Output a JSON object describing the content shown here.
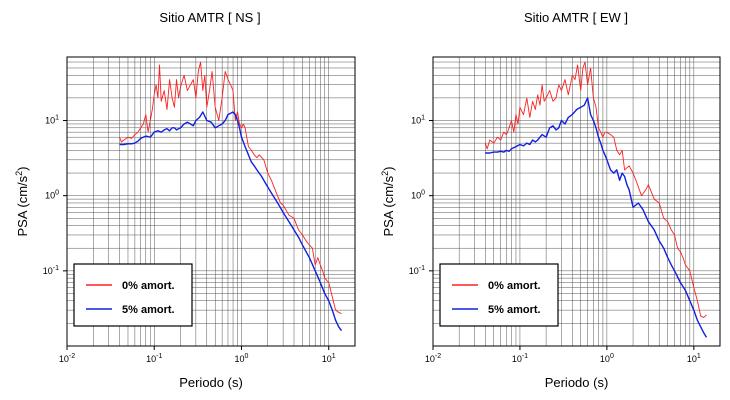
{
  "chart_data": [
    {
      "type": "line",
      "title": "Sitio AMTR [ NS ]",
      "xlabel": "Periodo (s)",
      "ylabel_main": "PSA (cm/s",
      "ylabel_sup": "2",
      "ylabel_end": ")",
      "xscale": "log",
      "yscale": "log",
      "xlim": [
        0.01,
        20
      ],
      "ylim": [
        0.01,
        70
      ],
      "grid": true,
      "legend": "bottom-left",
      "xticks": [
        {
          "base": "10",
          "exp": "-2",
          "v": 0.01
        },
        {
          "base": "10",
          "exp": "-1",
          "v": 0.1
        },
        {
          "base": "10",
          "exp": "0",
          "v": 1
        },
        {
          "base": "10",
          "exp": "1",
          "v": 10
        }
      ],
      "yticks": [
        {
          "base": "10",
          "exp": "-1",
          "v": 0.1
        },
        {
          "base": "10",
          "exp": "0",
          "v": 1
        },
        {
          "base": "10",
          "exp": "1",
          "v": 10
        }
      ],
      "series": [
        {
          "name": "0% amort.",
          "color": "#ff2020",
          "x": [
            0.04,
            0.042,
            0.045,
            0.05,
            0.055,
            0.06,
            0.065,
            0.07,
            0.075,
            0.08,
            0.085,
            0.09,
            0.095,
            0.1,
            0.105,
            0.11,
            0.115,
            0.12,
            0.13,
            0.14,
            0.15,
            0.16,
            0.17,
            0.18,
            0.19,
            0.2,
            0.22,
            0.24,
            0.26,
            0.28,
            0.3,
            0.32,
            0.34,
            0.36,
            0.38,
            0.4,
            0.43,
            0.46,
            0.5,
            0.55,
            0.6,
            0.65,
            0.7,
            0.75,
            0.8,
            0.85,
            0.9,
            0.95,
            1.0,
            1.05,
            1.1,
            1.2,
            1.3,
            1.4,
            1.5,
            1.6,
            1.8,
            2.0,
            2.2,
            2.5,
            2.8,
            3.0,
            3.5,
            4.0,
            4.5,
            5.0,
            5.5,
            6.0,
            6.5,
            7.0,
            7.5,
            8.0,
            8.5,
            9.0,
            10.0,
            11.0,
            12.0,
            13.0,
            14.0
          ],
          "y": [
            6,
            5.2,
            5.5,
            6,
            5.8,
            6.5,
            7,
            8,
            9,
            12,
            7,
            10,
            14,
            22,
            30,
            20,
            55,
            18,
            25,
            14,
            35,
            20,
            15,
            35,
            20,
            28,
            40,
            25,
            30,
            35,
            20,
            45,
            60,
            25,
            40,
            15,
            25,
            45,
            15,
            10,
            20,
            45,
            35,
            30,
            25,
            10,
            13,
            9,
            8,
            9,
            8,
            4.5,
            4,
            3.5,
            3.2,
            3.5,
            3,
            2,
            1.6,
            1.1,
            0.8,
            0.75,
            0.55,
            0.5,
            0.35,
            0.3,
            0.25,
            0.22,
            0.2,
            0.12,
            0.15,
            0.12,
            0.1,
            0.08,
            0.07,
            0.045,
            0.03,
            0.028,
            0.027
          ]
        },
        {
          "name": "5% amort.",
          "color": "#1020e0",
          "x": [
            0.04,
            0.045,
            0.05,
            0.055,
            0.06,
            0.065,
            0.07,
            0.08,
            0.09,
            0.1,
            0.11,
            0.12,
            0.13,
            0.14,
            0.15,
            0.16,
            0.17,
            0.18,
            0.2,
            0.22,
            0.24,
            0.26,
            0.28,
            0.3,
            0.33,
            0.36,
            0.4,
            0.45,
            0.5,
            0.55,
            0.6,
            0.65,
            0.7,
            0.75,
            0.8,
            0.85,
            0.9,
            0.95,
            1.0,
            1.1,
            1.2,
            1.3,
            1.4,
            1.5,
            1.7,
            2.0,
            2.3,
            2.6,
            3.0,
            3.5,
            4.0,
            4.5,
            5.0,
            5.5,
            6.0,
            7.0,
            8.0,
            9.0,
            10.0,
            11.0,
            12.0,
            13.0,
            14.0
          ],
          "y": [
            4.8,
            4.8,
            4.9,
            4.9,
            5,
            5.3,
            5.8,
            6.2,
            6,
            7,
            7.3,
            7,
            7.5,
            7.8,
            7.3,
            8,
            8,
            7.5,
            8,
            9,
            9.5,
            9,
            8.5,
            10,
            11,
            13,
            10,
            9.5,
            8,
            8.5,
            9,
            10,
            12,
            12.5,
            13,
            12,
            10,
            8,
            6,
            4.5,
            3.5,
            2.8,
            2.5,
            2.2,
            1.8,
            1.3,
            1,
            0.8,
            0.6,
            0.45,
            0.35,
            0.28,
            0.22,
            0.18,
            0.15,
            0.1,
            0.07,
            0.05,
            0.04,
            0.03,
            0.022,
            0.018,
            0.016
          ]
        }
      ]
    },
    {
      "type": "line",
      "title": "Sitio AMTR [ EW ]",
      "xlabel": "Periodo (s)",
      "ylabel_main": "PSA (cm/s",
      "ylabel_sup": "2",
      "ylabel_end": ")",
      "xscale": "log",
      "yscale": "log",
      "xlim": [
        0.01,
        20
      ],
      "ylim": [
        0.01,
        70
      ],
      "grid": true,
      "legend": "bottom-left",
      "xticks": [
        {
          "base": "10",
          "exp": "-2",
          "v": 0.01
        },
        {
          "base": "10",
          "exp": "-1",
          "v": 0.1
        },
        {
          "base": "10",
          "exp": "0",
          "v": 1
        },
        {
          "base": "10",
          "exp": "1",
          "v": 10
        }
      ],
      "yticks": [
        {
          "base": "10",
          "exp": "-1",
          "v": 0.1
        },
        {
          "base": "10",
          "exp": "0",
          "v": 1
        },
        {
          "base": "10",
          "exp": "1",
          "v": 10
        }
      ],
      "series": [
        {
          "name": "0% amort.",
          "color": "#ff2020",
          "x": [
            0.04,
            0.042,
            0.045,
            0.05,
            0.055,
            0.06,
            0.065,
            0.07,
            0.075,
            0.08,
            0.085,
            0.09,
            0.095,
            0.1,
            0.11,
            0.12,
            0.13,
            0.14,
            0.15,
            0.16,
            0.17,
            0.18,
            0.19,
            0.2,
            0.22,
            0.24,
            0.26,
            0.28,
            0.3,
            0.33,
            0.36,
            0.4,
            0.43,
            0.46,
            0.5,
            0.53,
            0.56,
            0.6,
            0.65,
            0.7,
            0.75,
            0.8,
            0.85,
            0.9,
            0.95,
            1.0,
            1.1,
            1.2,
            1.3,
            1.4,
            1.5,
            1.6,
            1.8,
            2.0,
            2.2,
            2.5,
            2.8,
            3.0,
            3.5,
            4.0,
            4.5,
            5.0,
            5.5,
            6.0,
            6.5,
            7.0,
            7.5,
            8.0,
            9.0,
            10.0,
            11.0,
            12.0,
            13.0,
            14.0
          ],
          "y": [
            5,
            4.2,
            5.5,
            5,
            6,
            5.5,
            7,
            6.5,
            8,
            10,
            7,
            12,
            9,
            15,
            12,
            20,
            11,
            18,
            14,
            22,
            16,
            30,
            18,
            20,
            25,
            18,
            20,
            30,
            25,
            35,
            22,
            40,
            35,
            55,
            25,
            50,
            60,
            30,
            50,
            20,
            15,
            8,
            7,
            6,
            7,
            7,
            6.5,
            6,
            4,
            3.5,
            4,
            2.2,
            2.5,
            2,
            1.5,
            1,
            1.2,
            1.4,
            0.9,
            0.8,
            0.5,
            0.45,
            0.35,
            0.3,
            0.2,
            0.18,
            0.15,
            0.12,
            0.1,
            0.06,
            0.04,
            0.025,
            0.024,
            0.026
          ]
        },
        {
          "name": "5% amort.",
          "color": "#1020e0",
          "x": [
            0.04,
            0.045,
            0.05,
            0.055,
            0.06,
            0.065,
            0.07,
            0.075,
            0.08,
            0.09,
            0.1,
            0.11,
            0.12,
            0.13,
            0.14,
            0.15,
            0.16,
            0.18,
            0.2,
            0.22,
            0.24,
            0.26,
            0.28,
            0.3,
            0.33,
            0.36,
            0.4,
            0.45,
            0.5,
            0.55,
            0.6,
            0.65,
            0.7,
            0.75,
            0.8,
            0.85,
            0.9,
            0.95,
            1.0,
            1.1,
            1.2,
            1.3,
            1.4,
            1.5,
            1.6,
            1.7,
            1.8,
            2.0,
            2.3,
            2.6,
            3.0,
            3.5,
            4.0,
            4.5,
            5.0,
            5.5,
            6.0,
            7.0,
            8.0,
            9.0,
            10.0,
            11.0,
            12.0,
            13.0,
            14.0
          ],
          "y": [
            3.7,
            3.7,
            3.8,
            3.8,
            3.9,
            3.8,
            4,
            3.9,
            4.2,
            4.5,
            4.8,
            4.6,
            5,
            4.8,
            5.5,
            5.2,
            5.5,
            6.5,
            6,
            8,
            8.5,
            7.5,
            8,
            10,
            9,
            11,
            12,
            14,
            15,
            16,
            20,
            12,
            10,
            8,
            6,
            5,
            4,
            3.5,
            3,
            2.2,
            2,
            2.2,
            1.6,
            2,
            1.8,
            1.4,
            1.2,
            0.7,
            0.8,
            0.65,
            0.45,
            0.35,
            0.25,
            0.2,
            0.15,
            0.12,
            0.1,
            0.07,
            0.055,
            0.04,
            0.03,
            0.022,
            0.018,
            0.015,
            0.013
          ]
        }
      ]
    }
  ]
}
